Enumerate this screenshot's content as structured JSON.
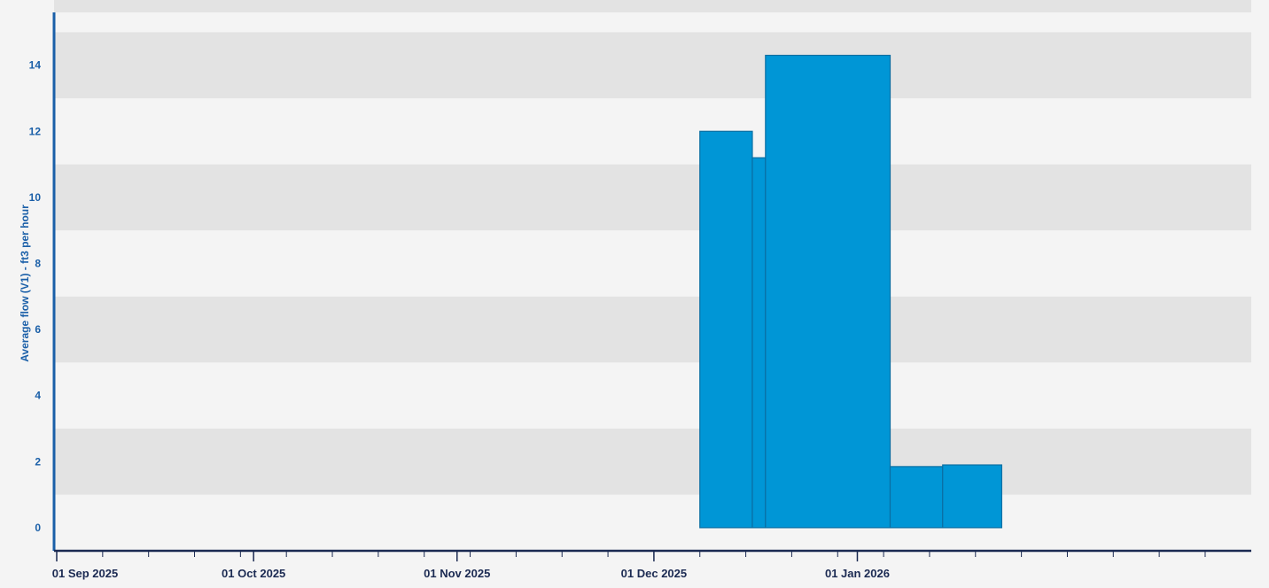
{
  "chart_data": {
    "type": "bar",
    "title": "",
    "xlabel": "",
    "ylabel": "Average flow (V1) - ft3 per hour",
    "ylim": [
      -0.7,
      15.6
    ],
    "yticks": [
      0,
      2,
      4,
      6,
      8,
      10,
      12,
      14
    ],
    "xlim": [
      "2025-09-01",
      "2026-02-28"
    ],
    "xticks": [
      {
        "date": "2025-09-01",
        "label": "01 Sep 2025"
      },
      {
        "date": "2025-10-01",
        "label": "01 Oct 2025"
      },
      {
        "date": "2025-11-01",
        "label": "01 Nov 2025"
      },
      {
        "date": "2025-12-01",
        "label": "01 Dec 2025"
      },
      {
        "date": "2026-01-01",
        "label": "01 Jan 2026"
      }
    ],
    "grid": "alternating horizontal bands",
    "bar_color": "#0096d6",
    "bars": [
      {
        "start": "2025-12-08",
        "end": "2025-12-16",
        "value": 12.0
      },
      {
        "start": "2025-12-16",
        "end": "2025-12-18",
        "value": 11.2
      },
      {
        "start": "2025-12-18",
        "end": "2026-01-06",
        "value": 14.3
      },
      {
        "start": "2026-01-06",
        "end": "2026-01-14",
        "value": 1.85
      },
      {
        "start": "2026-01-14",
        "end": "2026-01-23",
        "value": 1.9
      }
    ]
  }
}
